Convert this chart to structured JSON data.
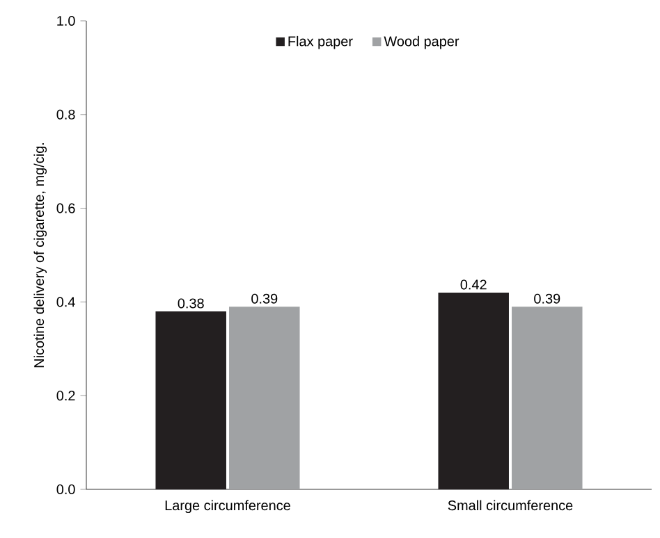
{
  "chart_data": {
    "type": "bar",
    "ylabel": "Nicotine delivery of cigarette, mg/cig.",
    "categories": [
      "Large circumference",
      "Small circumference"
    ],
    "series": [
      {
        "name": "Flax paper",
        "color": "#231f20",
        "values": [
          0.38,
          0.42
        ]
      },
      {
        "name": "Wood paper",
        "color": "#a0a2a4",
        "values": [
          0.39,
          0.39
        ]
      }
    ],
    "ylim": [
      0,
      1.0
    ],
    "yticks": [
      {
        "value": 0,
        "label": "0.0"
      },
      0.2,
      0.4,
      0.6,
      0.8,
      {
        "value": 1.0,
        "label": "1.0"
      }
    ],
    "data_labels": true,
    "legend": "top",
    "grid": false
  }
}
